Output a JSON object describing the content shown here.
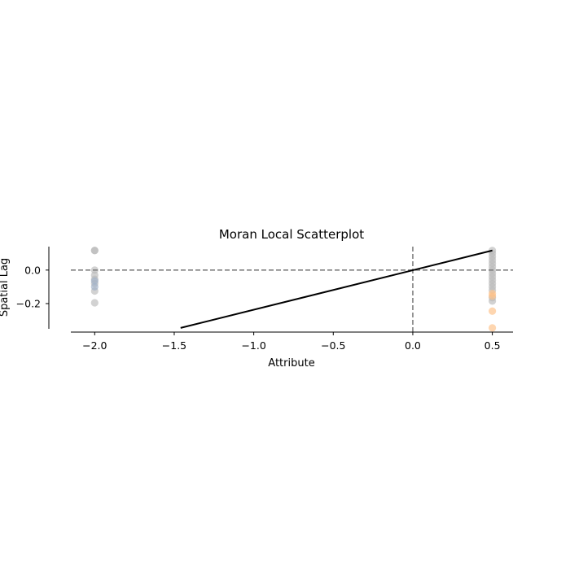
{
  "chart_data": {
    "type": "scatter",
    "title": "Moran Local Scatterplot",
    "xlabel": "Attribute",
    "ylabel": "Spatial Lag",
    "xlim": [
      -2.15,
      0.63
    ],
    "ylim": [
      -0.37,
      0.14
    ],
    "xticks": [
      {
        "value": -2.0,
        "label": "−2.0"
      },
      {
        "value": -1.5,
        "label": "−1.5"
      },
      {
        "value": -1.0,
        "label": "−1.0"
      },
      {
        "value": -0.5,
        "label": "−0.5"
      },
      {
        "value": 0.0,
        "label": "0.0"
      },
      {
        "value": 0.5,
        "label": "0.5"
      }
    ],
    "yticks": [
      {
        "value": 0.0,
        "label": "0.0"
      },
      {
        "value": -0.2,
        "label": "−0.2"
      }
    ],
    "reference_lines": {
      "x": 0.0,
      "y": 0.0,
      "style": "dashed",
      "color": "#7f7f7f"
    },
    "fit_line": {
      "x": [
        -1.46,
        0.5
      ],
      "y": [
        -0.345,
        0.117
      ],
      "color": "#000000"
    },
    "grid": false,
    "series": [
      {
        "color": "#bababa",
        "points": [
          {
            "x": -2.0,
            "y": 0.117
          },
          {
            "x": -2.0,
            "y": 0.117
          },
          {
            "x": -2.0,
            "y": 0.0
          },
          {
            "x": -2.0,
            "y": -0.03
          },
          {
            "x": -2.0,
            "y": -0.055
          },
          {
            "x": -2.0,
            "y": -0.08
          },
          {
            "x": -2.0,
            "y": -0.125
          },
          {
            "x": -2.0,
            "y": -0.195
          },
          {
            "x": 0.5,
            "y": 0.117
          },
          {
            "x": 0.5,
            "y": 0.1
          },
          {
            "x": 0.5,
            "y": 0.08
          },
          {
            "x": 0.5,
            "y": 0.06
          },
          {
            "x": 0.5,
            "y": 0.04
          },
          {
            "x": 0.5,
            "y": 0.02
          },
          {
            "x": 0.5,
            "y": 0.0
          },
          {
            "x": 0.5,
            "y": -0.02
          },
          {
            "x": 0.5,
            "y": -0.04
          },
          {
            "x": 0.5,
            "y": -0.06
          },
          {
            "x": 0.5,
            "y": -0.08
          },
          {
            "x": 0.5,
            "y": -0.1
          },
          {
            "x": 0.5,
            "y": -0.12
          },
          {
            "x": 0.5,
            "y": -0.165
          },
          {
            "x": 0.5,
            "y": -0.185
          }
        ]
      },
      {
        "color": "#9fb0c8",
        "points": [
          {
            "x": -2.0,
            "y": -0.065
          },
          {
            "x": -2.0,
            "y": -0.1
          }
        ]
      },
      {
        "color": "#fdc086",
        "points": [
          {
            "x": 0.5,
            "y": -0.14
          },
          {
            "x": 0.5,
            "y": -0.155
          },
          {
            "x": 0.5,
            "y": -0.245
          },
          {
            "x": 0.5,
            "y": -0.345
          }
        ]
      }
    ]
  }
}
